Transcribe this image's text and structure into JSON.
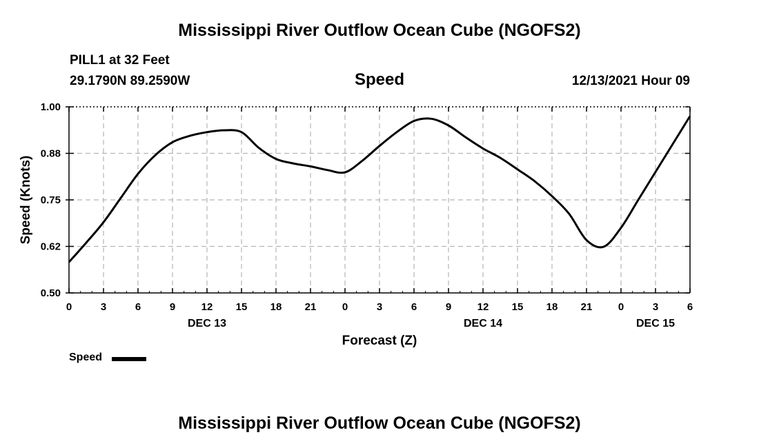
{
  "page": {
    "title_top": "Mississippi River Outflow Ocean Cube (NGOFS2)",
    "title_bottom": "Mississippi River Outflow Ocean Cube (NGOFS2)",
    "station": "PILL1 at 32 Feet",
    "coords": "29.1790N  89.2590W",
    "subtitle": "Speed",
    "datetime": "12/13/2021 Hour 09"
  },
  "chart_data": {
    "type": "line",
    "title": "Speed",
    "xlabel": "Forecast (Z)",
    "ylabel": "Speed (Knots)",
    "x_unit": "hours from 2021-12-13 00Z",
    "xlim": [
      0,
      54
    ],
    "ylim": [
      0.5,
      1.0
    ],
    "grid": true,
    "y_ticks": [
      {
        "value": 0.5,
        "label": "0.50"
      },
      {
        "value": 0.625,
        "label": "0.62"
      },
      {
        "value": 0.75,
        "label": "0.75"
      },
      {
        "value": 0.875,
        "label": "0.88"
      },
      {
        "value": 1.0,
        "label": "1.00"
      }
    ],
    "x_ticks": [
      {
        "value": 0,
        "label": "0"
      },
      {
        "value": 3,
        "label": "3"
      },
      {
        "value": 6,
        "label": "6"
      },
      {
        "value": 9,
        "label": "9"
      },
      {
        "value": 12,
        "label": "12"
      },
      {
        "value": 15,
        "label": "15"
      },
      {
        "value": 18,
        "label": "18"
      },
      {
        "value": 21,
        "label": "21"
      },
      {
        "value": 24,
        "label": "0"
      },
      {
        "value": 27,
        "label": "3"
      },
      {
        "value": 30,
        "label": "6"
      },
      {
        "value": 33,
        "label": "9"
      },
      {
        "value": 36,
        "label": "12"
      },
      {
        "value": 39,
        "label": "15"
      },
      {
        "value": 42,
        "label": "18"
      },
      {
        "value": 45,
        "label": "21"
      },
      {
        "value": 48,
        "label": "0"
      },
      {
        "value": 51,
        "label": "3"
      },
      {
        "value": 54,
        "label": "6"
      }
    ],
    "date_labels": [
      {
        "value": 12,
        "label": "DEC 13"
      },
      {
        "value": 36,
        "label": "DEC 14"
      },
      {
        "value": 51,
        "label": "DEC 15"
      }
    ],
    "legend": {
      "label": "Speed",
      "position": "bottom-left"
    },
    "series": [
      {
        "name": "Speed",
        "color": "#000000",
        "x": [
          0,
          1.5,
          3,
          4.5,
          6,
          7.5,
          9,
          10.5,
          12,
          13.5,
          15,
          16.5,
          18,
          19.5,
          21,
          22.5,
          24,
          25.5,
          27,
          28.5,
          30,
          31.5,
          33,
          34.5,
          36,
          37.5,
          39,
          40.5,
          42,
          43.5,
          45,
          46.5,
          48,
          49.5,
          51,
          52.5,
          54
        ],
        "y": [
          0.583,
          0.635,
          0.69,
          0.755,
          0.82,
          0.87,
          0.905,
          0.922,
          0.932,
          0.937,
          0.932,
          0.89,
          0.86,
          0.848,
          0.84,
          0.83,
          0.824,
          0.855,
          0.895,
          0.932,
          0.962,
          0.968,
          0.95,
          0.918,
          0.888,
          0.863,
          0.832,
          0.8,
          0.76,
          0.712,
          0.642,
          0.624,
          0.675,
          0.75,
          0.825,
          0.9,
          0.975
        ]
      }
    ]
  }
}
